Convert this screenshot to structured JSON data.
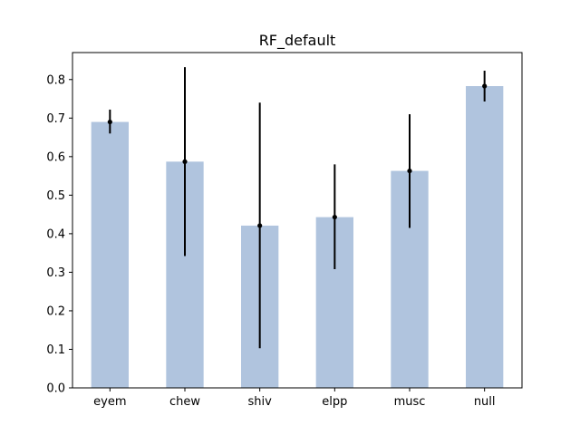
{
  "chart_data": {
    "type": "bar",
    "title": "RF_default",
    "xlabel": "",
    "ylabel": "",
    "categories": [
      "eyem",
      "chew",
      "shiv",
      "elpp",
      "musc",
      "null"
    ],
    "values": [
      0.69,
      0.587,
      0.421,
      0.443,
      0.563,
      0.783
    ],
    "error_low": [
      0.66,
      0.342,
      0.103,
      0.308,
      0.415,
      0.743
    ],
    "error_high": [
      0.722,
      0.832,
      0.74,
      0.58,
      0.71,
      0.823
    ],
    "ylim": [
      0,
      0.87
    ],
    "yticks": [
      0.0,
      0.1,
      0.2,
      0.3,
      0.4,
      0.5,
      0.6,
      0.7,
      0.8
    ],
    "ytick_labels": [
      "0.0",
      "0.1",
      "0.2",
      "0.3",
      "0.4",
      "0.5",
      "0.6",
      "0.7",
      "0.8"
    ],
    "grid": false,
    "bar_color": "#b0c4de",
    "error_color": "#000000"
  }
}
